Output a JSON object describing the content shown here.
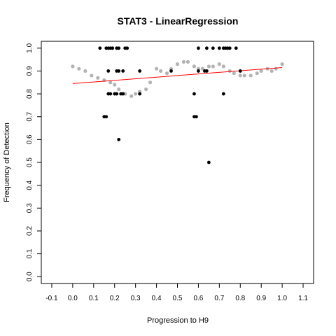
{
  "chart_data": {
    "type": "scatter",
    "title": "STAT3 - LinearRegression",
    "xlabel": "Progression to H9",
    "ylabel": "Frequency of Detection",
    "xlim": [
      -0.15,
      1.15
    ],
    "ylim": [
      -0.03,
      1.03
    ],
    "x_ticks": [
      "-0.1",
      "0.0",
      "0.1",
      "0.2",
      "0.3",
      "0.4",
      "0.5",
      "0.6",
      "0.7",
      "0.8",
      "0.9",
      "1.0",
      "1.1"
    ],
    "y_ticks": [
      "0.0",
      "0.1",
      "0.2",
      "0.3",
      "0.4",
      "0.5",
      "0.6",
      "0.7",
      "0.8",
      "0.9",
      "1.0"
    ],
    "grid": false,
    "colors": {
      "observed": "#000000",
      "smoothed": "#b3b3b3",
      "fit": "#ff0000"
    },
    "series": [
      {
        "role": "observed",
        "x": [
          0.13,
          0.16,
          0.17,
          0.18,
          0.19,
          0.21,
          0.22,
          0.25,
          0.26,
          0.17,
          0.21,
          0.22,
          0.24,
          0.32,
          0.17,
          0.18,
          0.2,
          0.21,
          0.23,
          0.24,
          0.32,
          0.16,
          0.15,
          0.22,
          0.47,
          0.6,
          0.64,
          0.67,
          0.7,
          0.72,
          0.73,
          0.74,
          0.75,
          0.78,
          0.6,
          0.63,
          0.64,
          0.8,
          0.58,
          0.72,
          0.58,
          0.59,
          0.65
        ],
        "y": [
          1.0,
          1.0,
          1.0,
          1.0,
          1.0,
          1.0,
          1.0,
          1.0,
          1.0,
          0.9,
          0.9,
          0.9,
          0.9,
          0.9,
          0.8,
          0.8,
          0.8,
          0.8,
          0.8,
          0.8,
          0.8,
          0.7,
          0.7,
          0.6,
          0.9,
          1.0,
          1.0,
          1.0,
          1.0,
          1.0,
          1.0,
          1.0,
          1.0,
          1.0,
          0.9,
          0.9,
          0.9,
          0.9,
          0.8,
          0.8,
          0.7,
          0.7,
          0.5
        ]
      },
      {
        "role": "smoothed",
        "x": [
          0.0,
          0.03,
          0.06,
          0.09,
          0.12,
          0.15,
          0.18,
          0.2,
          0.22,
          0.25,
          0.28,
          0.3,
          0.32,
          0.35,
          0.37,
          0.4,
          0.42,
          0.45,
          0.47,
          0.5,
          0.53,
          0.55,
          0.58,
          0.6,
          0.62,
          0.65,
          0.67,
          0.7,
          0.72,
          0.75,
          0.77,
          0.8,
          0.82,
          0.85,
          0.88,
          0.9,
          0.93,
          0.95,
          0.97,
          1.0
        ],
        "y": [
          0.92,
          0.91,
          0.9,
          0.88,
          0.87,
          0.86,
          0.85,
          0.84,
          0.82,
          0.8,
          0.79,
          0.8,
          0.81,
          0.82,
          0.85,
          0.91,
          0.9,
          0.89,
          0.91,
          0.93,
          0.94,
          0.94,
          0.92,
          0.91,
          0.91,
          0.92,
          0.92,
          0.93,
          0.92,
          0.9,
          0.89,
          0.88,
          0.88,
          0.88,
          0.89,
          0.9,
          0.91,
          0.9,
          0.91,
          0.93
        ]
      },
      {
        "role": "fit",
        "x": [
          0.0,
          1.0
        ],
        "y": [
          0.845,
          0.915
        ]
      }
    ]
  }
}
